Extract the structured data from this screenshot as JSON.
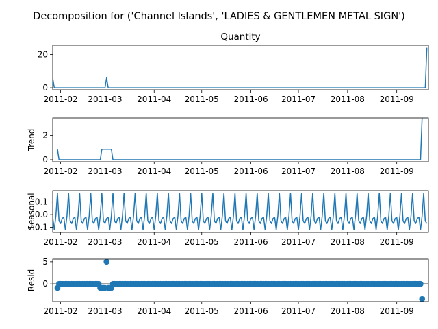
{
  "figure": {
    "suptitle": "Decomposition for ('Channel Islands', 'LADIES & GENTLEMEN METAL SIGN')",
    "series_color": "#1f77b4"
  },
  "chart_data": [
    {
      "type": "line",
      "title": "Quantity",
      "ylabel": "",
      "xlim": [
        "2011-01-27",
        "2011-09-21"
      ],
      "ylim": [
        -1.2,
        25.5
      ],
      "yticks": [
        0,
        20
      ],
      "xticks": [
        "2011-02",
        "2011-03",
        "2011-04",
        "2011-05",
        "2011-06",
        "2011-07",
        "2011-08",
        "2011-09"
      ],
      "points": [
        [
          "2011-01-27",
          6
        ],
        [
          "2011-01-28",
          0
        ],
        [
          "2011-03-01",
          0
        ],
        [
          "2011-03-02",
          6
        ],
        [
          "2011-03-03",
          0
        ],
        [
          "2011-09-19",
          0
        ],
        [
          "2011-09-20",
          24
        ]
      ]
    },
    {
      "type": "line",
      "title": "",
      "ylabel": "Trend",
      "xlim": [
        "2011-01-27",
        "2011-09-21"
      ],
      "ylim": [
        -0.17,
        3.45
      ],
      "yticks": [
        0,
        2
      ],
      "xticks": [
        "2011-02",
        "2011-03",
        "2011-04",
        "2011-05",
        "2011-06",
        "2011-07",
        "2011-08",
        "2011-09"
      ],
      "points": [
        [
          "2011-01-30",
          0.86
        ],
        [
          "2011-01-31",
          0
        ],
        [
          "2011-02-26",
          0
        ],
        [
          "2011-02-27",
          0.86
        ],
        [
          "2011-03-05",
          0.86
        ],
        [
          "2011-03-06",
          0
        ],
        [
          "2011-09-16",
          0
        ],
        [
          "2011-09-17",
          3.43
        ]
      ]
    },
    {
      "type": "line",
      "title": "",
      "ylabel": "Seasonal",
      "xlim": [
        "2011-01-27",
        "2011-09-21"
      ],
      "ylim": [
        -0.14,
        0.19
      ],
      "yticks": [
        0.1,
        0.0,
        -0.1
      ],
      "ytick_labels": [
        "0.1",
        "0.0",
        "−0.1"
      ],
      "xticks": [
        "2011-02",
        "2011-03",
        "2011-04",
        "2011-05",
        "2011-06",
        "2011-07",
        "2011-08",
        "2011-09"
      ],
      "period_days": 7,
      "start": "2011-01-27",
      "end": "2011-09-20",
      "weekly_pattern": [
        -0.02,
        -0.12,
        -0.01,
        0.17,
        -0.05,
        -0.07,
        -0.03
      ]
    },
    {
      "type": "scatter",
      "title": "",
      "ylabel": "Resid",
      "xlim": [
        "2011-01-27",
        "2011-09-21"
      ],
      "ylim": [
        -4.0,
        5.6
      ],
      "yticks": [
        0,
        5
      ],
      "xticks": [
        "2011-02",
        "2011-03",
        "2011-04",
        "2011-05",
        "2011-06",
        "2011-07",
        "2011-08",
        "2011-09"
      ],
      "baseline": 0,
      "start": "2011-01-30",
      "end": "2011-09-17",
      "default_value": 0.0,
      "points": [
        [
          "2011-01-30",
          -0.9
        ],
        [
          "2011-02-26",
          -0.9
        ],
        [
          "2011-02-27",
          -0.9
        ],
        [
          "2011-02-28",
          -0.9
        ],
        [
          "2011-03-01",
          -0.9
        ],
        [
          "2011-03-02",
          5.0
        ],
        [
          "2011-03-03",
          -0.9
        ],
        [
          "2011-03-04",
          -0.9
        ],
        [
          "2011-03-05",
          -0.9
        ],
        [
          "2011-09-17",
          -3.4
        ]
      ]
    }
  ]
}
